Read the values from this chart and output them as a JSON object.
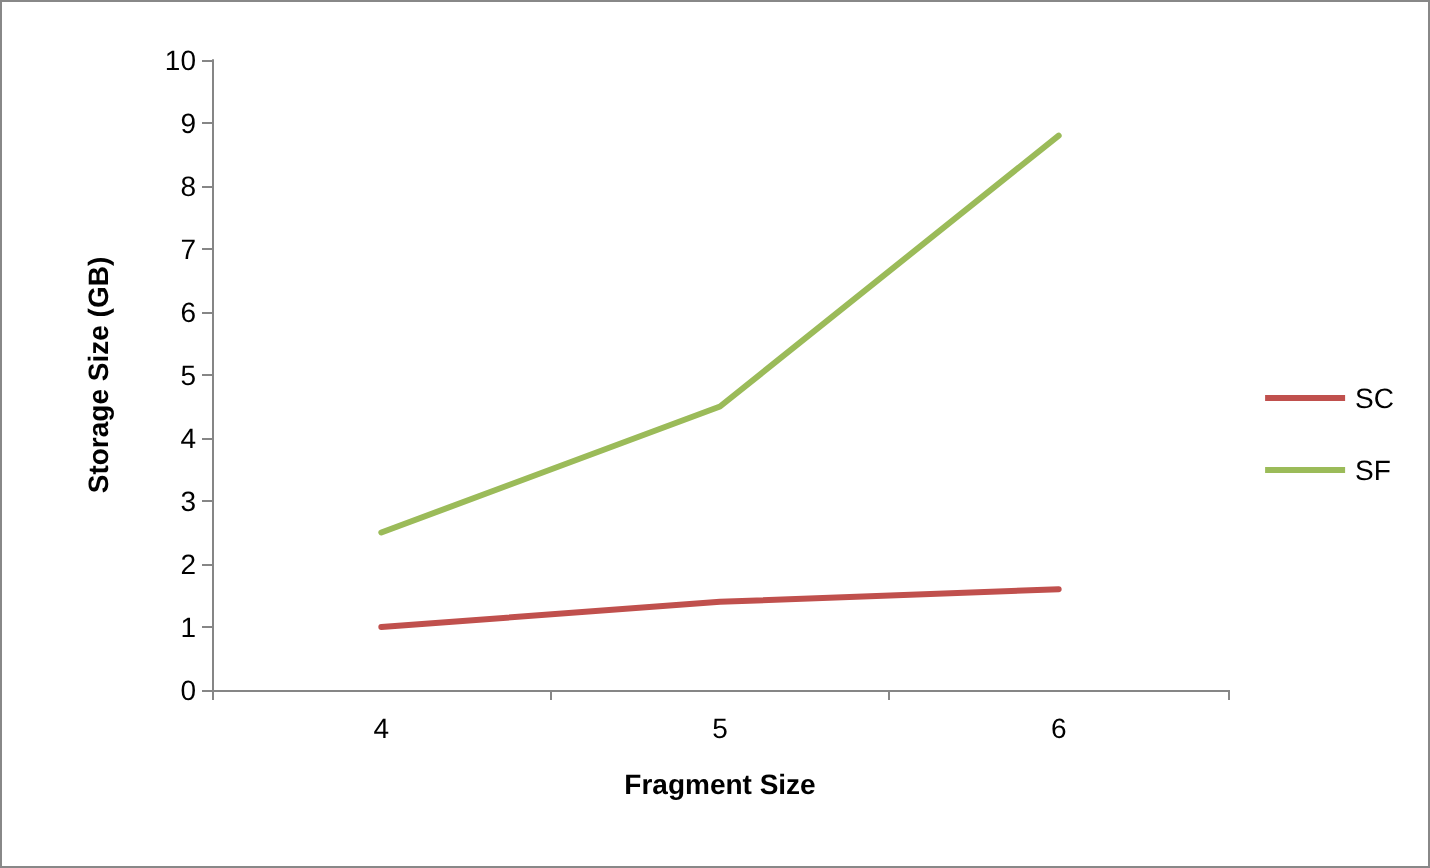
{
  "chart_data": {
    "type": "line",
    "xlabel": "Fragment Size",
    "ylabel": "Storage Size (GB)",
    "categories": [
      "4",
      "5",
      "6"
    ],
    "series": [
      {
        "name": "SC",
        "color": "#c0504d",
        "values": [
          1.0,
          1.4,
          1.6
        ]
      },
      {
        "name": "SF",
        "color": "#9bbb59",
        "values": [
          2.5,
          4.5,
          8.8
        ]
      }
    ],
    "ylim": [
      0,
      10
    ],
    "yticks": [
      0,
      1,
      2,
      3,
      4,
      5,
      6,
      7,
      8,
      9,
      10
    ],
    "grid": false,
    "legend": "right",
    "marker": "none",
    "line_style": "solid"
  }
}
